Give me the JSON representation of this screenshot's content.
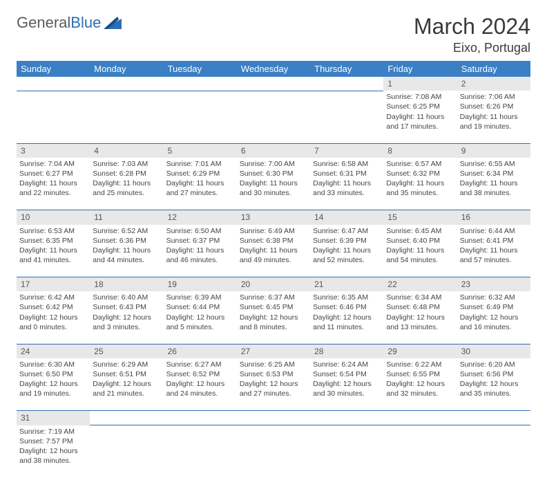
{
  "brand": {
    "part1": "General",
    "part2": "Blue"
  },
  "title": "March 2024",
  "location": "Eixo, Portugal",
  "colors": {
    "header_bg": "#3b7fc4",
    "header_text": "#ffffff",
    "daynum_bg": "#e8e8e8",
    "border": "#2c6eb5",
    "text": "#444444",
    "logo_gray": "#5a5a5a",
    "logo_blue": "#2c6eb5"
  },
  "weekdays": [
    "Sunday",
    "Monday",
    "Tuesday",
    "Wednesday",
    "Thursday",
    "Friday",
    "Saturday"
  ],
  "weeks": [
    {
      "nums": [
        "",
        "",
        "",
        "",
        "",
        "1",
        "2"
      ],
      "cells": [
        null,
        null,
        null,
        null,
        null,
        {
          "sunrise": "Sunrise: 7:08 AM",
          "sunset": "Sunset: 6:25 PM",
          "day1": "Daylight: 11 hours",
          "day2": "and 17 minutes."
        },
        {
          "sunrise": "Sunrise: 7:06 AM",
          "sunset": "Sunset: 6:26 PM",
          "day1": "Daylight: 11 hours",
          "day2": "and 19 minutes."
        }
      ]
    },
    {
      "nums": [
        "3",
        "4",
        "5",
        "6",
        "7",
        "8",
        "9"
      ],
      "cells": [
        {
          "sunrise": "Sunrise: 7:04 AM",
          "sunset": "Sunset: 6:27 PM",
          "day1": "Daylight: 11 hours",
          "day2": "and 22 minutes."
        },
        {
          "sunrise": "Sunrise: 7:03 AM",
          "sunset": "Sunset: 6:28 PM",
          "day1": "Daylight: 11 hours",
          "day2": "and 25 minutes."
        },
        {
          "sunrise": "Sunrise: 7:01 AM",
          "sunset": "Sunset: 6:29 PM",
          "day1": "Daylight: 11 hours",
          "day2": "and 27 minutes."
        },
        {
          "sunrise": "Sunrise: 7:00 AM",
          "sunset": "Sunset: 6:30 PM",
          "day1": "Daylight: 11 hours",
          "day2": "and 30 minutes."
        },
        {
          "sunrise": "Sunrise: 6:58 AM",
          "sunset": "Sunset: 6:31 PM",
          "day1": "Daylight: 11 hours",
          "day2": "and 33 minutes."
        },
        {
          "sunrise": "Sunrise: 6:57 AM",
          "sunset": "Sunset: 6:32 PM",
          "day1": "Daylight: 11 hours",
          "day2": "and 35 minutes."
        },
        {
          "sunrise": "Sunrise: 6:55 AM",
          "sunset": "Sunset: 6:34 PM",
          "day1": "Daylight: 11 hours",
          "day2": "and 38 minutes."
        }
      ]
    },
    {
      "nums": [
        "10",
        "11",
        "12",
        "13",
        "14",
        "15",
        "16"
      ],
      "cells": [
        {
          "sunrise": "Sunrise: 6:53 AM",
          "sunset": "Sunset: 6:35 PM",
          "day1": "Daylight: 11 hours",
          "day2": "and 41 minutes."
        },
        {
          "sunrise": "Sunrise: 6:52 AM",
          "sunset": "Sunset: 6:36 PM",
          "day1": "Daylight: 11 hours",
          "day2": "and 44 minutes."
        },
        {
          "sunrise": "Sunrise: 6:50 AM",
          "sunset": "Sunset: 6:37 PM",
          "day1": "Daylight: 11 hours",
          "day2": "and 46 minutes."
        },
        {
          "sunrise": "Sunrise: 6:49 AM",
          "sunset": "Sunset: 6:38 PM",
          "day1": "Daylight: 11 hours",
          "day2": "and 49 minutes."
        },
        {
          "sunrise": "Sunrise: 6:47 AM",
          "sunset": "Sunset: 6:39 PM",
          "day1": "Daylight: 11 hours",
          "day2": "and 52 minutes."
        },
        {
          "sunrise": "Sunrise: 6:45 AM",
          "sunset": "Sunset: 6:40 PM",
          "day1": "Daylight: 11 hours",
          "day2": "and 54 minutes."
        },
        {
          "sunrise": "Sunrise: 6:44 AM",
          "sunset": "Sunset: 6:41 PM",
          "day1": "Daylight: 11 hours",
          "day2": "and 57 minutes."
        }
      ]
    },
    {
      "nums": [
        "17",
        "18",
        "19",
        "20",
        "21",
        "22",
        "23"
      ],
      "cells": [
        {
          "sunrise": "Sunrise: 6:42 AM",
          "sunset": "Sunset: 6:42 PM",
          "day1": "Daylight: 12 hours",
          "day2": "and 0 minutes."
        },
        {
          "sunrise": "Sunrise: 6:40 AM",
          "sunset": "Sunset: 6:43 PM",
          "day1": "Daylight: 12 hours",
          "day2": "and 3 minutes."
        },
        {
          "sunrise": "Sunrise: 6:39 AM",
          "sunset": "Sunset: 6:44 PM",
          "day1": "Daylight: 12 hours",
          "day2": "and 5 minutes."
        },
        {
          "sunrise": "Sunrise: 6:37 AM",
          "sunset": "Sunset: 6:45 PM",
          "day1": "Daylight: 12 hours",
          "day2": "and 8 minutes."
        },
        {
          "sunrise": "Sunrise: 6:35 AM",
          "sunset": "Sunset: 6:46 PM",
          "day1": "Daylight: 12 hours",
          "day2": "and 11 minutes."
        },
        {
          "sunrise": "Sunrise: 6:34 AM",
          "sunset": "Sunset: 6:48 PM",
          "day1": "Daylight: 12 hours",
          "day2": "and 13 minutes."
        },
        {
          "sunrise": "Sunrise: 6:32 AM",
          "sunset": "Sunset: 6:49 PM",
          "day1": "Daylight: 12 hours",
          "day2": "and 16 minutes."
        }
      ]
    },
    {
      "nums": [
        "24",
        "25",
        "26",
        "27",
        "28",
        "29",
        "30"
      ],
      "cells": [
        {
          "sunrise": "Sunrise: 6:30 AM",
          "sunset": "Sunset: 6:50 PM",
          "day1": "Daylight: 12 hours",
          "day2": "and 19 minutes."
        },
        {
          "sunrise": "Sunrise: 6:29 AM",
          "sunset": "Sunset: 6:51 PM",
          "day1": "Daylight: 12 hours",
          "day2": "and 21 minutes."
        },
        {
          "sunrise": "Sunrise: 6:27 AM",
          "sunset": "Sunset: 6:52 PM",
          "day1": "Daylight: 12 hours",
          "day2": "and 24 minutes."
        },
        {
          "sunrise": "Sunrise: 6:25 AM",
          "sunset": "Sunset: 6:53 PM",
          "day1": "Daylight: 12 hours",
          "day2": "and 27 minutes."
        },
        {
          "sunrise": "Sunrise: 6:24 AM",
          "sunset": "Sunset: 6:54 PM",
          "day1": "Daylight: 12 hours",
          "day2": "and 30 minutes."
        },
        {
          "sunrise": "Sunrise: 6:22 AM",
          "sunset": "Sunset: 6:55 PM",
          "day1": "Daylight: 12 hours",
          "day2": "and 32 minutes."
        },
        {
          "sunrise": "Sunrise: 6:20 AM",
          "sunset": "Sunset: 6:56 PM",
          "day1": "Daylight: 12 hours",
          "day2": "and 35 minutes."
        }
      ]
    },
    {
      "nums": [
        "31",
        "",
        "",
        "",
        "",
        "",
        ""
      ],
      "cells": [
        {
          "sunrise": "Sunrise: 7:19 AM",
          "sunset": "Sunset: 7:57 PM",
          "day1": "Daylight: 12 hours",
          "day2": "and 38 minutes."
        },
        null,
        null,
        null,
        null,
        null,
        null
      ]
    }
  ]
}
